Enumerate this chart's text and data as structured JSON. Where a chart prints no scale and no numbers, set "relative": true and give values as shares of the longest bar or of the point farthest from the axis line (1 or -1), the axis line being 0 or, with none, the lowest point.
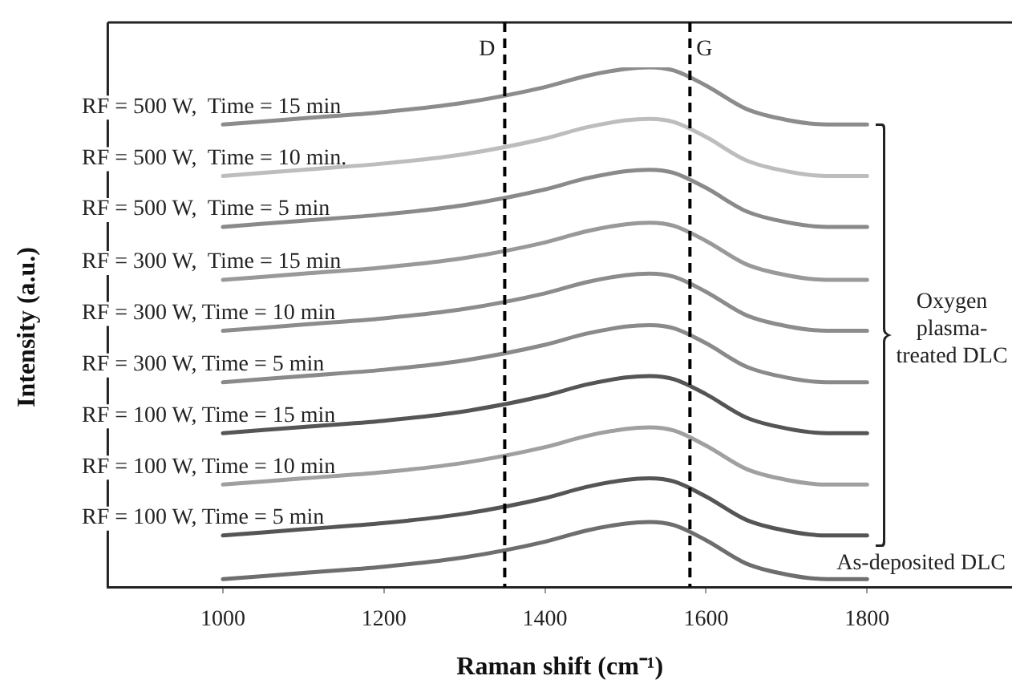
{
  "chart_data": {
    "type": "line",
    "relative": true,
    "xlabel": "Raman shift (cm⁻¹)",
    "ylabel": "Intensity (a.u.)",
    "x": [
      1000,
      1100,
      1200,
      1300,
      1400,
      1450,
      1500,
      1530,
      1560,
      1600,
      1650,
      1700,
      1750,
      1800
    ],
    "xlim": [
      857,
      1980
    ],
    "xticks": [
      1000,
      1200,
      1400,
      1600,
      1800
    ],
    "grid": false,
    "legend": false,
    "marker": "none",
    "line_style": "solid",
    "series": [
      {
        "name": "RF = 500 W,  Time = 15 min",
        "color": "#8c8c8c",
        "values": [
          0.89,
          0.902,
          0.914,
          0.932,
          0.962,
          0.983,
          0.997,
          1.0,
          0.994,
          0.965,
          0.92,
          0.899,
          0.89,
          0.89
        ]
      },
      {
        "name": "RF = 500 W,  Time = 10 min.",
        "color": "#bdbdbd",
        "values": [
          0.791,
          0.803,
          0.815,
          0.833,
          0.863,
          0.884,
          0.898,
          0.901,
          0.895,
          0.866,
          0.821,
          0.8,
          0.791,
          0.791
        ]
      },
      {
        "name": "RF = 500 W,  Time = 5 min",
        "color": "#8a8a8a",
        "values": [
          0.693,
          0.705,
          0.717,
          0.735,
          0.765,
          0.786,
          0.8,
          0.803,
          0.797,
          0.768,
          0.723,
          0.702,
          0.693,
          0.693
        ]
      },
      {
        "name": "RF = 300 W,  Time = 15 min",
        "color": "#999999",
        "values": [
          0.591,
          0.603,
          0.615,
          0.633,
          0.663,
          0.684,
          0.698,
          0.701,
          0.695,
          0.666,
          0.621,
          0.6,
          0.591,
          0.591
        ]
      },
      {
        "name": "RF = 300 W, Time = 10 min",
        "color": "#8c8c8c",
        "values": [
          0.493,
          0.505,
          0.517,
          0.535,
          0.565,
          0.586,
          0.6,
          0.603,
          0.597,
          0.568,
          0.523,
          0.502,
          0.493,
          0.493
        ]
      },
      {
        "name": "RF = 300 W, Time = 5 min",
        "color": "#8a8a8a",
        "values": [
          0.394,
          0.406,
          0.418,
          0.436,
          0.466,
          0.487,
          0.501,
          0.504,
          0.498,
          0.469,
          0.424,
          0.403,
          0.394,
          0.394
        ]
      },
      {
        "name": "RF = 100 W, Time = 15 min",
        "color": "#555555",
        "values": [
          0.296,
          0.308,
          0.32,
          0.338,
          0.368,
          0.389,
          0.403,
          0.406,
          0.4,
          0.371,
          0.326,
          0.305,
          0.296,
          0.296
        ]
      },
      {
        "name": "RF = 100 W, Time = 10 min",
        "color": "#a0a0a0",
        "values": [
          0.197,
          0.209,
          0.221,
          0.239,
          0.269,
          0.29,
          0.304,
          0.307,
          0.301,
          0.272,
          0.227,
          0.206,
          0.197,
          0.197
        ]
      },
      {
        "name": "RF = 100 W, Time = 5 min",
        "color": "#555555",
        "values": [
          0.099,
          0.111,
          0.123,
          0.141,
          0.171,
          0.192,
          0.206,
          0.209,
          0.203,
          0.174,
          0.129,
          0.108,
          0.099,
          0.099
        ]
      },
      {
        "name": "As-deposited DLC",
        "color": "#6e6e6e",
        "values": [
          0.015,
          0.027,
          0.039,
          0.057,
          0.087,
          0.108,
          0.122,
          0.125,
          0.119,
          0.09,
          0.045,
          0.024,
          0.015,
          0.015
        ]
      }
    ],
    "ref_lines": [
      {
        "axis": "x",
        "value": 1350,
        "label": "D",
        "color": "#000000",
        "line_style": "dashed"
      },
      {
        "axis": "x",
        "value": 1580,
        "label": "G",
        "color": "#000000",
        "line_style": "dashed"
      }
    ],
    "annotations": [
      "Oxygen plasma-treated DLC"
    ]
  }
}
